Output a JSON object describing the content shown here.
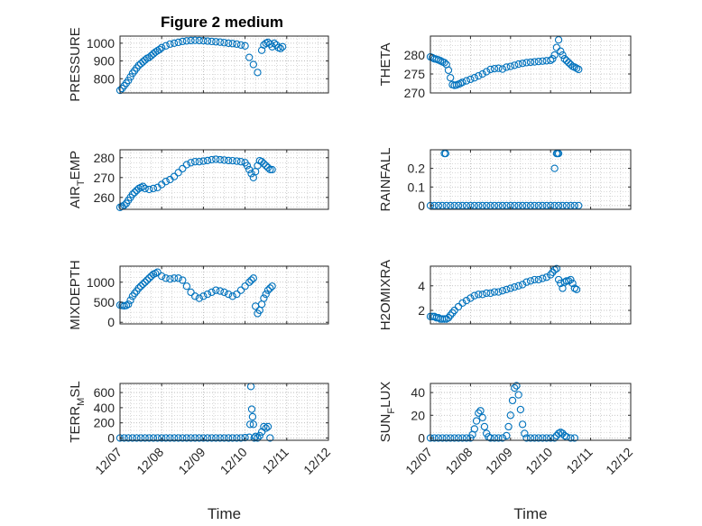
{
  "figure": {
    "title": "Figure 2 medium",
    "colors": {
      "marker": "#0072BD",
      "axis": "#262626",
      "grid": "#b0b0b0",
      "background": "#ffffff"
    }
  },
  "chart_data": [
    {
      "type": "scatter",
      "marker": "circle-open",
      "ylabel": "PRESSURE",
      "xlabel": "",
      "xlim": [
        0,
        5
      ],
      "ylim": [
        720,
        1040
      ],
      "x_ticks": [
        0,
        1,
        2,
        3,
        4,
        5
      ],
      "x_tick_labels": [
        "",
        "",
        "",
        "",
        "",
        ""
      ],
      "y_ticks": [
        800,
        900,
        1000
      ],
      "y_tick_labels": [
        "800",
        "900",
        "1000"
      ],
      "grid": true,
      "series": [
        {
          "x": [
            0.0,
            0.05,
            0.1,
            0.15,
            0.2,
            0.25,
            0.3,
            0.35,
            0.4,
            0.45,
            0.5,
            0.55,
            0.6,
            0.65,
            0.7,
            0.75,
            0.8,
            0.85,
            0.9,
            0.95,
            1.0,
            1.1,
            1.2,
            1.3,
            1.4,
            1.5,
            1.6,
            1.7,
            1.8,
            1.9,
            2.0,
            2.1,
            2.2,
            2.3,
            2.4,
            2.5,
            2.6,
            2.7,
            2.8,
            2.9,
            3.0,
            3.1,
            3.2,
            3.3,
            3.4,
            3.45,
            3.5,
            3.55,
            3.6,
            3.65,
            3.7,
            3.75,
            3.8,
            3.85,
            3.9
          ],
          "y": [
            735,
            745,
            760,
            775,
            790,
            810,
            830,
            845,
            860,
            875,
            885,
            895,
            905,
            915,
            920,
            930,
            940,
            950,
            958,
            965,
            975,
            985,
            995,
            1000,
            1005,
            1010,
            1013,
            1015,
            1016,
            1015,
            1014,
            1012,
            1010,
            1008,
            1006,
            1003,
            1000,
            998,
            995,
            990,
            985,
            920,
            880,
            835,
            960,
            990,
            1000,
            1005,
            995,
            980,
            1000,
            990,
            975,
            970,
            980
          ]
        }
      ]
    },
    {
      "type": "scatter",
      "marker": "circle-open",
      "ylabel": "THETA",
      "xlabel": "",
      "xlim": [
        0,
        5
      ],
      "ylim": [
        270,
        285
      ],
      "x_ticks": [
        0,
        1,
        2,
        3,
        4,
        5
      ],
      "x_tick_labels": [
        "",
        "",
        "",
        "",
        "",
        ""
      ],
      "y_ticks": [
        270,
        275,
        280
      ],
      "y_tick_labels": [
        "270",
        "275",
        "280"
      ],
      "grid": true,
      "series": [
        {
          "x": [
            0.0,
            0.05,
            0.1,
            0.15,
            0.2,
            0.25,
            0.3,
            0.35,
            0.4,
            0.45,
            0.5,
            0.55,
            0.6,
            0.65,
            0.7,
            0.75,
            0.8,
            0.9,
            1.0,
            1.1,
            1.2,
            1.3,
            1.4,
            1.5,
            1.6,
            1.7,
            1.8,
            1.9,
            2.0,
            2.1,
            2.2,
            2.3,
            2.4,
            2.5,
            2.6,
            2.7,
            2.8,
            2.9,
            3.0,
            3.05,
            3.1,
            3.15,
            3.2,
            3.25,
            3.3,
            3.35,
            3.4,
            3.45,
            3.5,
            3.55,
            3.6,
            3.65,
            3.7
          ],
          "y": [
            279.5,
            279.3,
            279.0,
            278.9,
            278.7,
            278.5,
            278.2,
            278.0,
            277.5,
            276.0,
            274.0,
            272.2,
            272.0,
            272.1,
            272.3,
            272.5,
            272.8,
            273.2,
            273.6,
            274.0,
            274.5,
            275.0,
            275.6,
            276.2,
            276.4,
            276.5,
            276.3,
            276.8,
            277.0,
            277.3,
            277.6,
            277.8,
            278.0,
            278.1,
            278.2,
            278.3,
            278.4,
            278.5,
            278.6,
            279.0,
            280.0,
            282.0,
            284.0,
            281.0,
            280.0,
            279.0,
            278.5,
            278.0,
            277.5,
            277.0,
            276.8,
            276.5,
            276.2
          ]
        }
      ]
    },
    {
      "type": "scatter",
      "marker": "circle-open",
      "ylabel": "AIR_TEMP",
      "ylabel_parts": [
        "AIR",
        "T",
        "EMP"
      ],
      "xlabel": "",
      "xlim": [
        0,
        5
      ],
      "ylim": [
        254,
        284
      ],
      "x_ticks": [
        0,
        1,
        2,
        3,
        4,
        5
      ],
      "x_tick_labels": [
        "",
        "",
        "",
        "",
        "",
        ""
      ],
      "y_ticks": [
        260,
        270,
        280
      ],
      "y_tick_labels": [
        "260",
        "270",
        "280"
      ],
      "grid": true,
      "series": [
        {
          "x": [
            0.0,
            0.05,
            0.1,
            0.15,
            0.2,
            0.25,
            0.3,
            0.35,
            0.4,
            0.45,
            0.5,
            0.55,
            0.6,
            0.7,
            0.8,
            0.9,
            1.0,
            1.1,
            1.2,
            1.3,
            1.4,
            1.5,
            1.6,
            1.7,
            1.8,
            1.9,
            2.0,
            2.1,
            2.2,
            2.3,
            2.4,
            2.5,
            2.6,
            2.7,
            2.8,
            2.9,
            3.0,
            3.05,
            3.1,
            3.15,
            3.2,
            3.25,
            3.3,
            3.35,
            3.4,
            3.45,
            3.5,
            3.55,
            3.6,
            3.65
          ],
          "y": [
            255,
            255.5,
            256,
            257,
            258.5,
            260,
            261.5,
            262.5,
            263.5,
            264.5,
            265,
            265.5,
            264.5,
            264,
            264.5,
            265,
            266.5,
            268,
            269,
            270.5,
            272.5,
            274.5,
            276.5,
            277.5,
            278,
            278,
            278.3,
            278.6,
            279,
            279.2,
            279,
            278.8,
            278.6,
            278.5,
            278.3,
            278,
            277.5,
            276,
            274,
            272,
            270,
            273,
            276,
            278.5,
            278,
            277,
            276,
            275,
            274,
            274
          ]
        }
      ]
    },
    {
      "type": "scatter",
      "marker": "circle-open",
      "ylabel": "RAINFALL",
      "xlabel": "",
      "xlim": [
        0,
        5
      ],
      "ylim": [
        -0.02,
        0.3
      ],
      "x_ticks": [
        0,
        1,
        2,
        3,
        4,
        5
      ],
      "x_tick_labels": [
        "",
        "",
        "",
        "",
        "",
        ""
      ],
      "y_ticks": [
        0,
        0.1,
        0.2
      ],
      "y_tick_labels": [
        "0",
        "0.1",
        "0.2"
      ],
      "grid": true,
      "series": [
        {
          "x": [
            0.0,
            0.1,
            0.2,
            0.3,
            0.4,
            0.5,
            0.6,
            0.7,
            0.8,
            0.9,
            1.0,
            1.1,
            1.2,
            1.3,
            1.4,
            1.5,
            1.6,
            1.7,
            1.8,
            1.9,
            2.0,
            2.1,
            2.2,
            2.3,
            2.4,
            2.5,
            2.6,
            2.7,
            2.8,
            2.9,
            3.0,
            3.1,
            3.2,
            3.3,
            3.4,
            3.5,
            3.6,
            3.7,
            0.35,
            0.38,
            3.1,
            3.15,
            3.2,
            3.17
          ],
          "y": [
            0,
            0,
            0,
            0,
            0,
            0,
            0,
            0,
            0,
            0,
            0,
            0,
            0,
            0,
            0,
            0,
            0,
            0,
            0,
            0,
            0,
            0,
            0,
            0,
            0,
            0,
            0,
            0,
            0,
            0,
            0,
            0,
            0,
            0,
            0,
            0,
            0,
            0,
            0.28,
            0.28,
            0.2,
            0.28,
            0.28,
            0.28
          ]
        }
      ]
    },
    {
      "type": "scatter",
      "marker": "circle-open",
      "ylabel": "MIXDEPTH",
      "xlabel": "",
      "xlim": [
        0,
        5
      ],
      "ylim": [
        -40,
        1400
      ],
      "x_ticks": [
        0,
        1,
        2,
        3,
        4,
        5
      ],
      "x_tick_labels": [
        "",
        "",
        "",
        "",
        "",
        ""
      ],
      "y_ticks": [
        0,
        500,
        1000
      ],
      "y_tick_labels": [
        "0",
        "500",
        "1000"
      ],
      "grid": true,
      "series": [
        {
          "x": [
            0.0,
            0.05,
            0.1,
            0.15,
            0.2,
            0.25,
            0.3,
            0.35,
            0.4,
            0.45,
            0.5,
            0.55,
            0.6,
            0.65,
            0.7,
            0.75,
            0.8,
            0.85,
            0.9,
            1.0,
            1.1,
            1.2,
            1.3,
            1.4,
            1.5,
            1.6,
            1.7,
            1.8,
            1.9,
            2.0,
            2.1,
            2.2,
            2.3,
            2.4,
            2.5,
            2.6,
            2.7,
            2.8,
            2.9,
            3.0,
            3.1,
            3.15,
            3.2,
            3.25,
            3.3,
            3.35,
            3.4,
            3.45,
            3.5,
            3.55,
            3.6,
            3.65
          ],
          "y": [
            430,
            420,
            410,
            420,
            450,
            550,
            650,
            720,
            780,
            850,
            900,
            950,
            1000,
            1050,
            1100,
            1150,
            1200,
            1220,
            1250,
            1150,
            1100,
            1080,
            1100,
            1100,
            1050,
            900,
            750,
            650,
            600,
            650,
            700,
            750,
            800,
            780,
            750,
            700,
            650,
            700,
            800,
            900,
            1000,
            1050,
            1100,
            400,
            220,
            300,
            450,
            600,
            700,
            800,
            850,
            900
          ]
        }
      ]
    },
    {
      "type": "scatter",
      "marker": "circle-open",
      "ylabel": "H2OMIXRA",
      "xlabel": "",
      "xlim": [
        0,
        5
      ],
      "ylim": [
        0.9,
        5.6
      ],
      "x_ticks": [
        0,
        1,
        2,
        3,
        4,
        5
      ],
      "x_tick_labels": [
        "",
        "",
        "",
        "",
        "",
        ""
      ],
      "y_ticks": [
        2,
        4
      ],
      "y_tick_labels": [
        "2",
        "4"
      ],
      "grid": true,
      "series": [
        {
          "x": [
            0.0,
            0.05,
            0.1,
            0.15,
            0.2,
            0.25,
            0.3,
            0.35,
            0.4,
            0.45,
            0.5,
            0.55,
            0.6,
            0.7,
            0.8,
            0.9,
            1.0,
            1.1,
            1.2,
            1.3,
            1.4,
            1.5,
            1.6,
            1.7,
            1.8,
            1.9,
            2.0,
            2.1,
            2.2,
            2.3,
            2.4,
            2.5,
            2.6,
            2.7,
            2.8,
            2.9,
            3.0,
            3.05,
            3.1,
            3.15,
            3.2,
            3.25,
            3.3,
            3.35,
            3.4,
            3.45,
            3.5,
            3.55,
            3.6,
            3.65
          ],
          "y": [
            1.5,
            1.5,
            1.5,
            1.4,
            1.4,
            1.3,
            1.3,
            1.3,
            1.3,
            1.4,
            1.6,
            1.8,
            2.0,
            2.3,
            2.6,
            2.8,
            3.0,
            3.2,
            3.3,
            3.3,
            3.4,
            3.4,
            3.5,
            3.5,
            3.6,
            3.7,
            3.8,
            3.9,
            4.0,
            4.1,
            4.3,
            4.4,
            4.5,
            4.5,
            4.6,
            4.7,
            4.9,
            5.1,
            5.3,
            5.4,
            4.5,
            4.2,
            3.8,
            4.3,
            4.4,
            4.4,
            4.5,
            4.2,
            3.8,
            3.7
          ]
        }
      ]
    },
    {
      "type": "scatter",
      "marker": "circle-open",
      "ylabel": "TERR_MSL",
      "ylabel_parts": [
        "TERR",
        "M",
        "SL"
      ],
      "xlabel": "Time",
      "xlim": [
        0,
        5
      ],
      "ylim": [
        -30,
        720
      ],
      "x_ticks": [
        0,
        1,
        2,
        3,
        4,
        5
      ],
      "x_tick_labels": [
        "12/07",
        "12/08",
        "12/09",
        "12/10",
        "12/11",
        "12/12"
      ],
      "y_ticks": [
        0,
        200,
        400,
        600
      ],
      "y_tick_labels": [
        "0",
        "200",
        "400",
        "600"
      ],
      "grid": true,
      "series": [
        {
          "x": [
            0.0,
            0.1,
            0.2,
            0.3,
            0.4,
            0.5,
            0.6,
            0.7,
            0.8,
            0.9,
            1.0,
            1.1,
            1.2,
            1.3,
            1.4,
            1.5,
            1.6,
            1.7,
            1.8,
            1.9,
            2.0,
            2.1,
            2.2,
            2.3,
            2.4,
            2.5,
            2.6,
            2.7,
            2.8,
            2.9,
            3.0,
            3.1,
            3.12,
            3.14,
            3.16,
            3.18,
            3.2,
            3.22,
            3.25,
            3.3,
            3.35,
            3.4,
            3.45,
            3.5,
            3.55,
            3.6
          ],
          "y": [
            0,
            0,
            0,
            0,
            0,
            0,
            0,
            0,
            0,
            0,
            0,
            0,
            0,
            0,
            0,
            0,
            0,
            0,
            0,
            0,
            0,
            0,
            0,
            0,
            0,
            0,
            0,
            0,
            0,
            0,
            5,
            10,
            180,
            680,
            380,
            280,
            180,
            0,
            20,
            0,
            30,
            80,
            150,
            130,
            150,
            0
          ]
        }
      ]
    },
    {
      "type": "scatter",
      "marker": "circle-open",
      "ylabel": "SUN_FLUX",
      "ylabel_parts": [
        "SUN",
        "F",
        "LUX"
      ],
      "xlabel": "Time",
      "xlim": [
        0,
        5
      ],
      "ylim": [
        -2,
        48
      ],
      "x_ticks": [
        0,
        1,
        2,
        3,
        4,
        5
      ],
      "x_tick_labels": [
        "12/07",
        "12/08",
        "12/09",
        "12/10",
        "12/11",
        "12/12"
      ],
      "y_ticks": [
        0,
        20,
        40
      ],
      "y_tick_labels": [
        "0",
        "20",
        "40"
      ],
      "grid": true,
      "series": [
        {
          "x": [
            0.0,
            0.1,
            0.2,
            0.3,
            0.4,
            0.5,
            0.6,
            0.7,
            0.8,
            0.9,
            1.0,
            1.05,
            1.1,
            1.15,
            1.2,
            1.25,
            1.3,
            1.35,
            1.4,
            1.45,
            1.5,
            1.6,
            1.7,
            1.8,
            1.9,
            1.95,
            2.0,
            2.05,
            2.1,
            2.15,
            2.2,
            2.25,
            2.3,
            2.35,
            2.4,
            2.5,
            2.6,
            2.7,
            2.8,
            2.9,
            3.0,
            3.1,
            3.15,
            3.2,
            3.25,
            3.3,
            3.35,
            3.4,
            3.5,
            3.6
          ],
          "y": [
            0,
            0,
            0,
            0,
            0,
            0,
            0,
            0,
            0,
            0,
            0,
            3,
            8,
            15,
            22,
            24,
            18,
            10,
            4,
            1,
            0,
            0,
            0,
            0,
            2,
            10,
            20,
            33,
            44,
            46,
            38,
            25,
            12,
            4,
            0,
            0,
            0,
            0,
            0,
            0,
            0,
            0,
            2,
            4,
            5,
            4,
            2,
            1,
            0,
            0
          ]
        }
      ]
    }
  ]
}
